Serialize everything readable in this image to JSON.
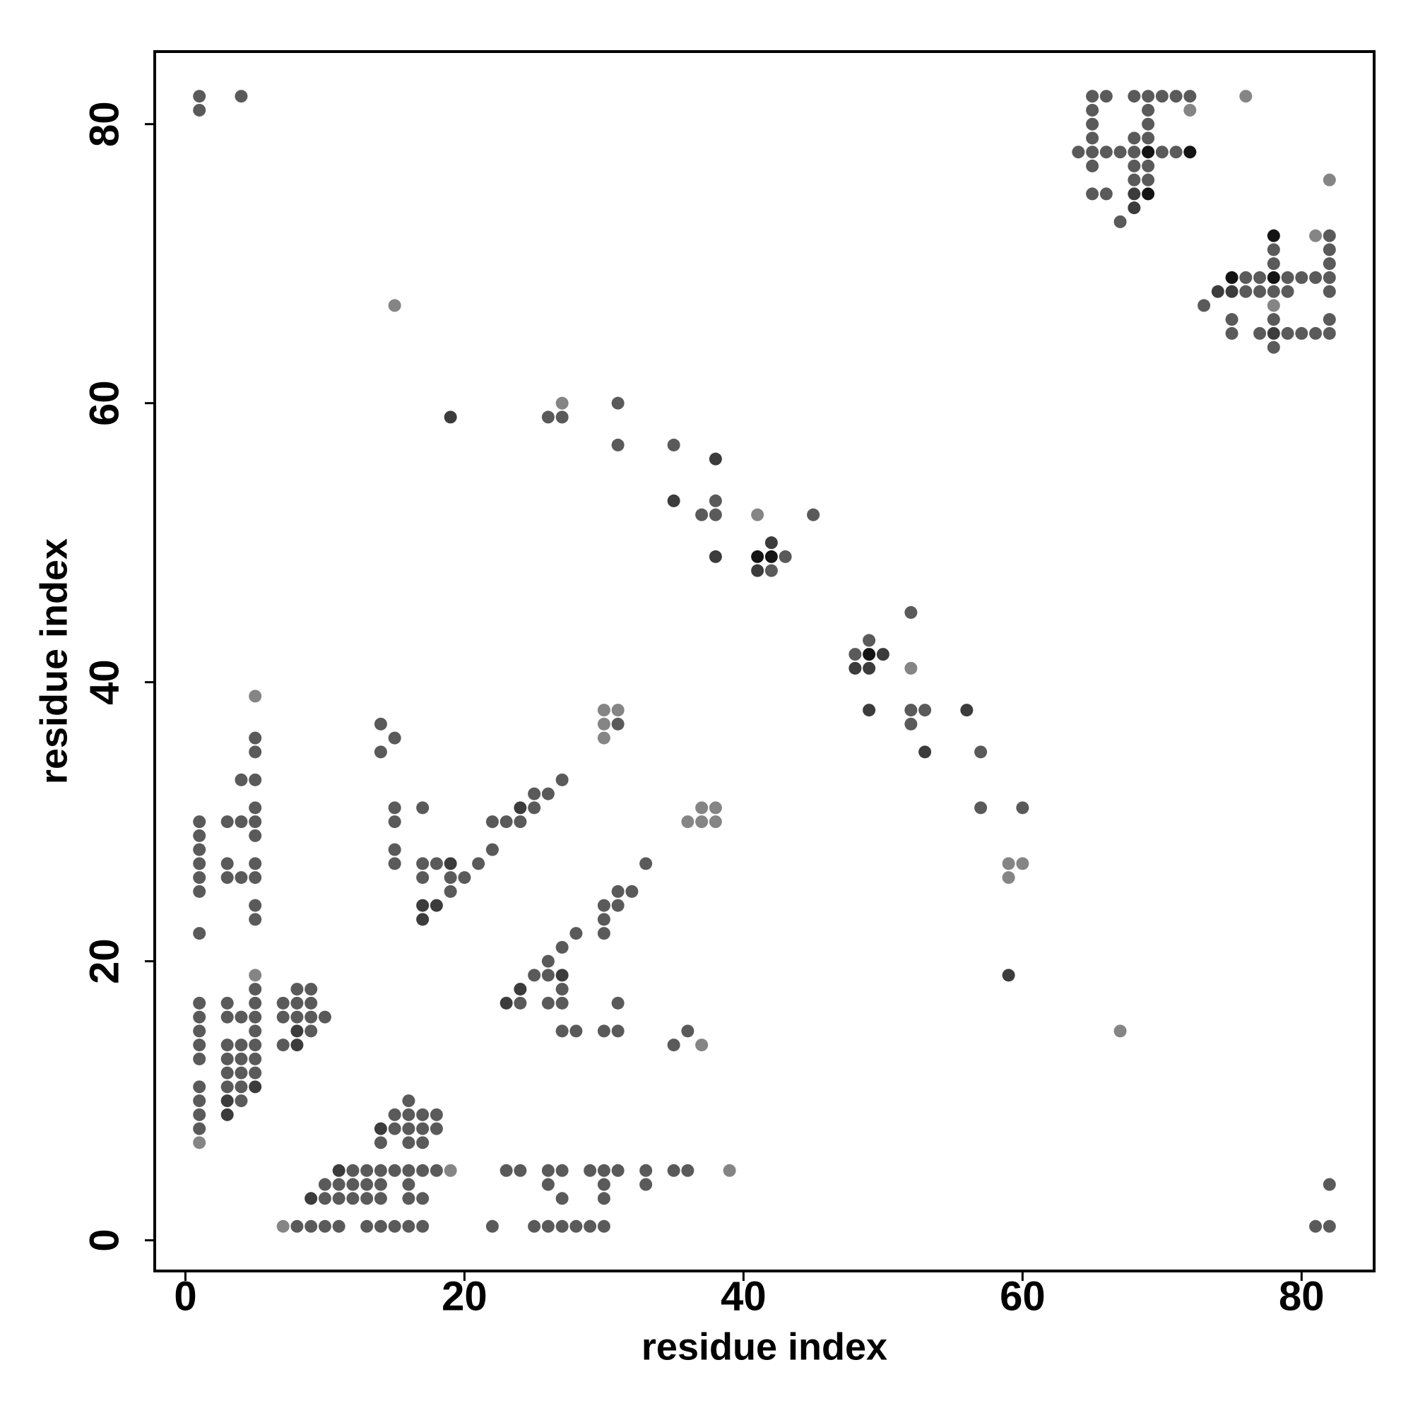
{
  "chart_data": {
    "type": "scatter",
    "xlabel": "residue index",
    "ylabel": "residue index",
    "xlim": [
      -2.2,
      85.2
    ],
    "ylim": [
      -2.2,
      85.2
    ],
    "xticks": [
      0,
      20,
      40,
      60,
      80
    ],
    "yticks": [
      0,
      20,
      40,
      60,
      80
    ],
    "x": [
      1,
      4,
      65,
      66,
      68,
      69,
      70,
      71,
      72,
      76,
      1,
      65,
      69,
      72,
      65,
      69,
      65,
      68,
      69,
      64,
      65,
      66,
      67,
      68,
      69,
      70,
      71,
      72,
      65,
      68,
      69,
      68,
      69,
      82,
      65,
      66,
      68,
      69,
      68,
      67,
      78,
      81,
      82,
      78,
      82,
      78,
      82,
      75,
      76,
      77,
      78,
      79,
      80,
      81,
      82,
      74,
      75,
      76,
      77,
      78,
      79,
      82,
      15,
      73,
      78,
      75,
      78,
      82,
      75,
      77,
      78,
      79,
      80,
      81,
      82,
      78,
      27,
      31,
      19,
      26,
      27,
      31,
      35,
      38,
      35,
      38,
      37,
      38,
      41,
      45,
      42,
      38,
      41,
      42,
      43,
      41,
      42,
      52,
      49,
      48,
      49,
      50,
      48,
      49,
      52,
      5,
      30,
      31,
      49,
      52,
      53,
      56,
      14,
      30,
      31,
      52,
      5,
      15,
      30,
      5,
      14,
      53,
      57,
      4,
      5,
      27,
      25,
      26,
      5,
      15,
      17,
      24,
      25,
      37,
      38,
      57,
      60,
      1,
      3,
      4,
      5,
      15,
      22,
      23,
      24,
      36,
      37,
      38,
      1,
      5,
      1,
      15,
      22,
      1,
      3,
      5,
      15,
      17,
      18,
      19,
      21,
      33,
      59,
      60,
      1,
      3,
      4,
      5,
      17,
      19,
      20,
      59,
      1,
      19,
      31,
      32,
      5,
      17,
      18,
      30,
      31,
      5,
      17,
      30,
      1,
      28,
      30,
      27,
      26,
      5,
      25,
      26,
      27,
      59,
      5,
      8,
      9,
      24,
      27,
      1,
      3,
      5,
      7,
      8,
      9,
      23,
      24,
      26,
      27,
      31,
      1,
      3,
      4,
      5,
      7,
      8,
      9,
      10,
      1,
      5,
      8,
      9,
      27,
      28,
      30,
      31,
      36,
      67,
      1,
      3,
      4,
      5,
      7,
      8,
      35,
      37,
      1,
      3,
      4,
      5,
      3,
      4,
      5,
      1,
      3,
      4,
      5,
      1,
      3,
      4,
      16,
      1,
      3,
      15,
      16,
      17,
      18,
      1,
      14,
      15,
      16,
      17,
      18,
      1,
      14,
      16,
      17,
      11,
      12,
      13,
      14,
      15,
      16,
      17,
      18,
      19,
      23,
      24,
      26,
      27,
      29,
      30,
      31,
      33,
      35,
      36,
      39,
      10,
      11,
      12,
      13,
      14,
      16,
      26,
      30,
      33,
      82,
      9,
      10,
      11,
      12,
      13,
      14,
      16,
      17,
      27,
      30,
      7,
      8,
      9,
      10,
      11,
      13,
      14,
      15,
      16,
      17,
      22,
      25,
      26,
      27,
      28,
      29,
      30,
      81,
      82
    ],
    "values": [
      82,
      82,
      82,
      82,
      82,
      82,
      82,
      82,
      82,
      82,
      81,
      81,
      81,
      81,
      80,
      80,
      79,
      79,
      79,
      78,
      78,
      78,
      78,
      78,
      78,
      78,
      78,
      78,
      77,
      77,
      77,
      76,
      76,
      76,
      75,
      75,
      75,
      75,
      74,
      73,
      72,
      72,
      72,
      71,
      71,
      70,
      70,
      69,
      69,
      69,
      69,
      69,
      69,
      69,
      69,
      68,
      68,
      68,
      68,
      68,
      68,
      68,
      67,
      67,
      67,
      66,
      66,
      66,
      65,
      65,
      65,
      65,
      65,
      65,
      65,
      64,
      60,
      60,
      59,
      59,
      59,
      57,
      57,
      56,
      53,
      53,
      52,
      52,
      52,
      52,
      50,
      49,
      49,
      49,
      49,
      48,
      48,
      45,
      43,
      42,
      42,
      42,
      41,
      41,
      41,
      39,
      38,
      38,
      38,
      38,
      38,
      38,
      37,
      37,
      37,
      37,
      36,
      36,
      36,
      35,
      35,
      35,
      35,
      33,
      33,
      33,
      32,
      32,
      31,
      31,
      31,
      31,
      31,
      31,
      31,
      31,
      31,
      30,
      30,
      30,
      30,
      30,
      30,
      30,
      30,
      30,
      30,
      30,
      29,
      29,
      28,
      28,
      28,
      27,
      27,
      27,
      27,
      27,
      27,
      27,
      27,
      27,
      27,
      27,
      26,
      26,
      26,
      26,
      26,
      26,
      26,
      26,
      25,
      25,
      25,
      25,
      24,
      24,
      24,
      24,
      24,
      23,
      23,
      23,
      22,
      22,
      22,
      21,
      20,
      19,
      19,
      19,
      19,
      19,
      18,
      18,
      18,
      18,
      18,
      17,
      17,
      17,
      17,
      17,
      17,
      17,
      17,
      17,
      17,
      17,
      16,
      16,
      16,
      16,
      16,
      16,
      16,
      16,
      15,
      15,
      15,
      15,
      15,
      15,
      15,
      15,
      15,
      15,
      14,
      14,
      14,
      14,
      14,
      14,
      14,
      14,
      13,
      13,
      13,
      13,
      12,
      12,
      12,
      11,
      11,
      11,
      11,
      10,
      10,
      10,
      10,
      9,
      9,
      9,
      9,
      9,
      9,
      8,
      8,
      8,
      8,
      8,
      8,
      7,
      7,
      7,
      7,
      5,
      5,
      5,
      5,
      5,
      5,
      5,
      5,
      5,
      5,
      5,
      5,
      5,
      5,
      5,
      5,
      5,
      5,
      5,
      5,
      4,
      4,
      4,
      4,
      4,
      4,
      4,
      4,
      4,
      4,
      3,
      3,
      3,
      3,
      3,
      3,
      3,
      3,
      3,
      3,
      1,
      1,
      1,
      1,
      1,
      1,
      1,
      1,
      1,
      1,
      1,
      1,
      1,
      1,
      1,
      1,
      1,
      1,
      1
    ],
    "colors": [
      "#5a5a5a",
      "#5a5a5a",
      "#5a5a5a",
      "#5a5a5a",
      "#5a5a5a",
      "#5a5a5a",
      "#5a5a5a",
      "#5a5a5a",
      "#5a5a5a",
      "#858585",
      "#5a5a5a",
      "#5a5a5a",
      "#5a5a5a",
      "#858585",
      "#5a5a5a",
      "#5a5a5a",
      "#5a5a5a",
      "#5a5a5a",
      "#5a5a5a",
      "#5a5a5a",
      "#5a5a5a",
      "#5a5a5a",
      "#5a5a5a",
      "#5a5a5a",
      "#141414",
      "#5a5a5a",
      "#5a5a5a",
      "#141414",
      "#5a5a5a",
      "#5a5a5a",
      "#5a5a5a",
      "#5a5a5a",
      "#5a5a5a",
      "#858585",
      "#5a5a5a",
      "#5a5a5a",
      "#3c3c3c",
      "#141414",
      "#3c3c3c",
      "#5a5a5a",
      "#141414",
      "#858585",
      "#5a5a5a",
      "#5a5a5a",
      "#5a5a5a",
      "#5a5a5a",
      "#5a5a5a",
      "#141414",
      "#5a5a5a",
      "#5a5a5a",
      "#141414",
      "#5a5a5a",
      "#5a5a5a",
      "#5a5a5a",
      "#5a5a5a",
      "#3c3c3c",
      "#3c3c3c",
      "#5a5a5a",
      "#5a5a5a",
      "#5a5a5a",
      "#5a5a5a",
      "#5a5a5a",
      "#858585",
      "#5a5a5a",
      "#858585",
      "#5a5a5a",
      "#5a5a5a",
      "#5a5a5a",
      "#5a5a5a",
      "#5a5a5a",
      "#3c3c3c",
      "#5a5a5a",
      "#5a5a5a",
      "#5a5a5a",
      "#5a5a5a",
      "#5a5a5a",
      "#858585",
      "#5a5a5a",
      "#3c3c3c",
      "#5a5a5a",
      "#5a5a5a",
      "#5a5a5a",
      "#5a5a5a",
      "#3c3c3c",
      "#3c3c3c",
      "#5a5a5a",
      "#5a5a5a",
      "#5a5a5a",
      "#858585",
      "#5a5a5a",
      "#3c3c3c",
      "#3c3c3c",
      "#141414",
      "#141414",
      "#5a5a5a",
      "#3c3c3c",
      "#5a5a5a",
      "#5a5a5a",
      "#5a5a5a",
      "#5a5a5a",
      "#141414",
      "#3c3c3c",
      "#3c3c3c",
      "#3c3c3c",
      "#858585",
      "#858585",
      "#858585",
      "#858585",
      "#3c3c3c",
      "#5a5a5a",
      "#5a5a5a",
      "#3c3c3c",
      "#5a5a5a",
      "#858585",
      "#5a5a5a",
      "#5a5a5a",
      "#5a5a5a",
      "#5a5a5a",
      "#858585",
      "#5a5a5a",
      "#5a5a5a",
      "#3c3c3c",
      "#5a5a5a",
      "#5a5a5a",
      "#5a5a5a",
      "#5a5a5a",
      "#5a5a5a",
      "#5a5a5a",
      "#5a5a5a",
      "#5a5a5a",
      "#5a5a5a",
      "#3c3c3c",
      "#5a5a5a",
      "#858585",
      "#858585",
      "#5a5a5a",
      "#5a5a5a",
      "#5a5a5a",
      "#5a5a5a",
      "#5a5a5a",
      "#5a5a5a",
      "#5a5a5a",
      "#5a5a5a",
      "#5a5a5a",
      "#5a5a5a",
      "#858585",
      "#858585",
      "#858585",
      "#5a5a5a",
      "#5a5a5a",
      "#5a5a5a",
      "#5a5a5a",
      "#5a5a5a",
      "#5a5a5a",
      "#5a5a5a",
      "#5a5a5a",
      "#5a5a5a",
      "#5a5a5a",
      "#5a5a5a",
      "#3c3c3c",
      "#5a5a5a",
      "#5a5a5a",
      "#858585",
      "#858585",
      "#5a5a5a",
      "#5a5a5a",
      "#5a5a5a",
      "#5a5a5a",
      "#5a5a5a",
      "#5a5a5a",
      "#5a5a5a",
      "#858585",
      "#5a5a5a",
      "#5a5a5a",
      "#5a5a5a",
      "#5a5a5a",
      "#5a5a5a",
      "#3c3c3c",
      "#3c3c3c",
      "#5a5a5a",
      "#5a5a5a",
      "#5a5a5a",
      "#3c3c3c",
      "#5a5a5a",
      "#5a5a5a",
      "#5a5a5a",
      "#5a5a5a",
      "#5a5a5a",
      "#5a5a5a",
      "#858585",
      "#5a5a5a",
      "#5a5a5a",
      "#3c3c3c",
      "#3c3c3c",
      "#5a5a5a",
      "#5a5a5a",
      "#5a5a5a",
      "#3c3c3c",
      "#5a5a5a",
      "#5a5a5a",
      "#5a5a5a",
      "#5a5a5a",
      "#5a5a5a",
      "#5a5a5a",
      "#5a5a5a",
      "#3c3c3c",
      "#5a5a5a",
      "#5a5a5a",
      "#5a5a5a",
      "#5a5a5a",
      "#5a5a5a",
      "#5a5a5a",
      "#5a5a5a",
      "#5a5a5a",
      "#5a5a5a",
      "#5a5a5a",
      "#5a5a5a",
      "#5a5a5a",
      "#5a5a5a",
      "#5a5a5a",
      "#3c3c3c",
      "#5a5a5a",
      "#5a5a5a",
      "#5a5a5a",
      "#5a5a5a",
      "#5a5a5a",
      "#5a5a5a",
      "#858585",
      "#5a5a5a",
      "#5a5a5a",
      "#5a5a5a",
      "#5a5a5a",
      "#5a5a5a",
      "#3c3c3c",
      "#5a5a5a",
      "#858585",
      "#5a5a5a",
      "#5a5a5a",
      "#5a5a5a",
      "#5a5a5a",
      "#5a5a5a",
      "#5a5a5a",
      "#5a5a5a",
      "#5a5a5a",
      "#5a5a5a",
      "#5a5a5a",
      "#3c3c3c",
      "#5a5a5a",
      "#3c3c3c",
      "#5a5a5a",
      "#5a5a5a",
      "#5a5a5a",
      "#3c3c3c",
      "#5a5a5a",
      "#5a5a5a",
      "#5a5a5a",
      "#5a5a5a",
      "#5a5a5a",
      "#3c3c3c",
      "#5a5a5a",
      "#5a5a5a",
      "#5a5a5a",
      "#5a5a5a",
      "#858585",
      "#5a5a5a",
      "#5a5a5a",
      "#5a5a5a",
      "#3c3c3c",
      "#5a5a5a",
      "#5a5a5a",
      "#5a5a5a",
      "#5a5a5a",
      "#5a5a5a",
      "#5a5a5a",
      "#5a5a5a",
      "#858585",
      "#5a5a5a",
      "#5a5a5a",
      "#5a5a5a",
      "#5a5a5a",
      "#5a5a5a",
      "#5a5a5a",
      "#5a5a5a",
      "#5a5a5a",
      "#5a5a5a",
      "#5a5a5a",
      "#858585",
      "#5a5a5a",
      "#5a5a5a",
      "#5a5a5a",
      "#5a5a5a",
      "#5a5a5a",
      "#5a5a5a",
      "#5a5a5a",
      "#5a5a5a",
      "#5a5a5a",
      "#5a5a5a",
      "#3c3c3c",
      "#5a5a5a",
      "#5a5a5a",
      "#5a5a5a",
      "#5a5a5a",
      "#5a5a5a",
      "#5a5a5a",
      "#5a5a5a",
      "#5a5a5a",
      "#5a5a5a",
      "#858585",
      "#5a5a5a",
      "#5a5a5a",
      "#5a5a5a",
      "#5a5a5a",
      "#5a5a5a",
      "#5a5a5a",
      "#5a5a5a",
      "#5a5a5a",
      "#5a5a5a",
      "#5a5a5a",
      "#5a5a5a",
      "#5a5a5a",
      "#5a5a5a",
      "#5a5a5a",
      "#5a5a5a",
      "#5a5a5a",
      "#5a5a5a",
      "#5a5a5a"
    ]
  }
}
